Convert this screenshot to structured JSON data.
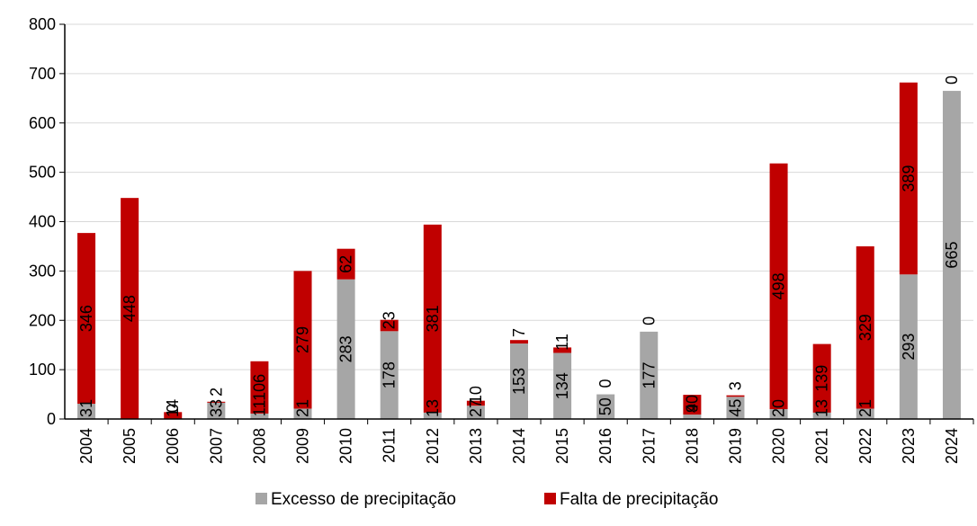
{
  "chart_data": {
    "type": "bar",
    "stacked": true,
    "categories": [
      "2004",
      "2005",
      "2006",
      "2007",
      "2008",
      "2009",
      "2010",
      "2011",
      "2012",
      "2013",
      "2014",
      "2015",
      "2016",
      "2017",
      "2018",
      "2019",
      "2020",
      "2021",
      "2022",
      "2023",
      "2024"
    ],
    "series": [
      {
        "name": "Excesso de precipitação",
        "color": "#a6a6a6",
        "values": [
          31,
          0,
          0,
          33,
          11,
          21,
          283,
          178,
          13,
          27,
          153,
          134,
          50,
          177,
          9,
          45,
          20,
          13,
          21,
          293,
          665
        ]
      },
      {
        "name": "Falta de precipitação",
        "color": "#c00000",
        "values": [
          346,
          448,
          14,
          2,
          106,
          279,
          62,
          23,
          381,
          10,
          7,
          11,
          0,
          0,
          40,
          3,
          498,
          139,
          329,
          389,
          0
        ]
      }
    ],
    "data_labels": {
      "Excesso de precipitação": [
        "31",
        "",
        "0",
        "33",
        "11",
        "21",
        "283",
        "178",
        "13",
        "27",
        "153",
        "134",
        "50",
        "177",
        "9",
        "45",
        "20",
        "13",
        "21",
        "293",
        "665"
      ],
      "Falta de precipitação": [
        "346",
        "448",
        "14",
        "2",
        "106",
        "279",
        "62",
        "23",
        "381",
        "10",
        "7",
        "11",
        "0",
        "0",
        "40",
        "3",
        "498",
        "139",
        "329",
        "389",
        "0"
      ]
    },
    "ylim": [
      0,
      800
    ],
    "yticks": [
      0,
      100,
      200,
      300,
      400,
      500,
      600,
      700,
      800
    ],
    "ytick_labels": [
      "0",
      "100",
      "200",
      "300",
      "400",
      "500",
      "600",
      "700",
      "800"
    ],
    "grid": "horizontal",
    "legend_position": "bottom",
    "title": "",
    "xlabel": "",
    "ylabel": ""
  }
}
